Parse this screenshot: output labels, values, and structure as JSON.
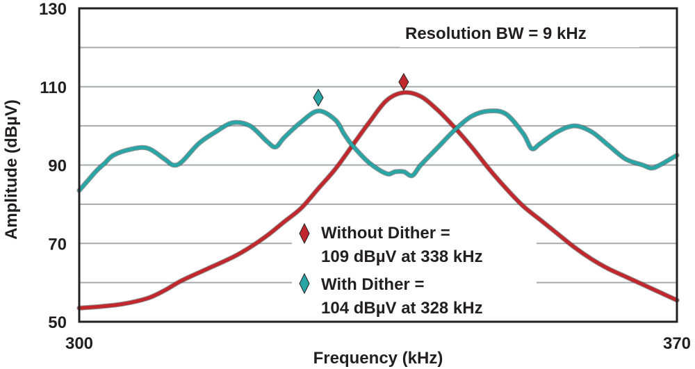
{
  "chart_data": {
    "type": "line",
    "title": "",
    "xlabel": "Frequency (kHz)",
    "ylabel": "Amplitude (dBµV)",
    "xlim": [
      300,
      370
    ],
    "ylim": [
      50,
      130
    ],
    "x_tick_labels": [
      "300",
      "370"
    ],
    "y_tick_labels": [
      "50",
      "70",
      "90",
      "110",
      "130"
    ],
    "grid": {
      "horizontal": true,
      "vertical": false,
      "y_step": 10
    },
    "annotation_top": "Resolution BW = 9 kHz",
    "series": [
      {
        "name": "Without Dither",
        "color": "#c0282d",
        "x": [
          300,
          302,
          305,
          308,
          310,
          312,
          315,
          318,
          320,
          322,
          324,
          326,
          328,
          330,
          332,
          334,
          336,
          338,
          340,
          342,
          344,
          346,
          348,
          350,
          352,
          354,
          356,
          358,
          360,
          362,
          364,
          366,
          368,
          370
        ],
        "y": [
          53.5,
          53.8,
          54.5,
          56,
          58,
          60.5,
          63.5,
          66.5,
          69,
          72,
          75.5,
          79,
          84,
          89,
          95,
          101,
          106.5,
          108.5,
          107.5,
          104,
          99.5,
          94.5,
          89,
          84,
          79.5,
          76,
          72.5,
          69,
          66,
          63.5,
          61.5,
          59.5,
          57.5,
          55.5
        ]
      },
      {
        "name": "With Dither",
        "color": "#2aa5a6",
        "x": [
          300,
          301,
          302,
          303,
          304,
          306,
          308,
          310,
          311,
          312,
          314,
          316,
          318,
          320,
          322,
          323,
          324,
          326,
          328,
          330,
          331,
          332,
          334,
          336,
          337,
          338,
          339,
          340,
          342,
          344,
          346,
          348,
          350,
          352,
          353,
          354,
          356,
          358,
          360,
          362,
          364,
          366,
          367,
          368,
          370
        ],
        "y": [
          83.5,
          86,
          88.5,
          90.5,
          92.5,
          94,
          94.3,
          91.5,
          90,
          90.8,
          95.5,
          98.5,
          100.8,
          100,
          96,
          94.6,
          97,
          101,
          103.8,
          101.5,
          98,
          95,
          90.5,
          87.8,
          88.3,
          88.3,
          87.3,
          90,
          94.5,
          99,
          102.5,
          103.8,
          103,
          98,
          94.2,
          95.5,
          98.5,
          100,
          98.5,
          95,
          91.5,
          90,
          89.2,
          90,
          92.5
        ]
      }
    ],
    "markers": [
      {
        "series": "Without Dither",
        "x": 338,
        "y": 111.2,
        "color": "#c0282d"
      },
      {
        "series": "With Dither",
        "x": 328,
        "y": 107.2,
        "color": "#2aa5a6"
      }
    ],
    "legend": {
      "placement": "bottom-center",
      "entries": [
        {
          "series": "Without Dither",
          "line1": "Without Dither =",
          "line2": "109 dBµV at 338 kHz",
          "color": "#c0282d"
        },
        {
          "series": "With Dither",
          "line1": "With Dither =",
          "line2": "104 dBµV at 328 kHz",
          "color": "#2aa5a6"
        }
      ]
    }
  }
}
